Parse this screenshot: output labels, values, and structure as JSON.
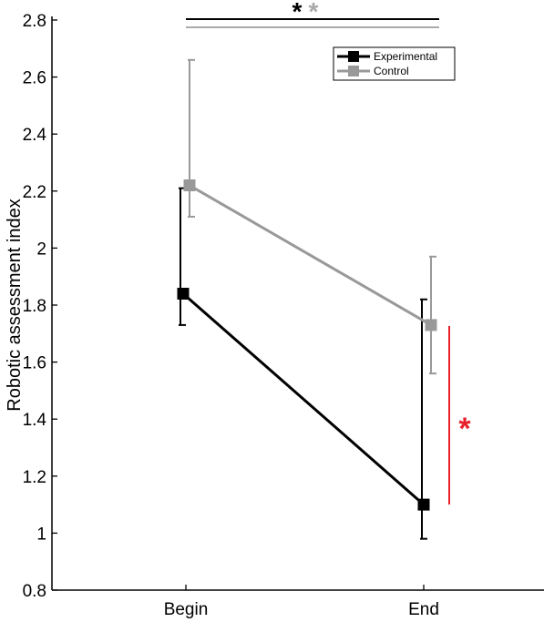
{
  "chart_data": {
    "type": "line",
    "categories": [
      "Begin",
      "End"
    ],
    "ylabel": "Robotic assessment index",
    "xlabel": "",
    "ylim": [
      0.8,
      2.8
    ],
    "yticks": [
      "0.8",
      "1",
      "1.2",
      "1.4",
      "1.6",
      "1.8",
      "2",
      "2.2",
      "2.4",
      "2.6",
      "2.8"
    ],
    "grid": false,
    "legend_position": "top-right",
    "series": [
      {
        "name": "Experimental",
        "color": "#000000",
        "marker": "square",
        "values": [
          1.84,
          1.1
        ],
        "error_low": [
          1.73,
          0.98
        ],
        "error_high": [
          2.21,
          1.82
        ]
      },
      {
        "name": "Control",
        "color": "#999999",
        "marker": "square",
        "values": [
          2.22,
          1.73
        ],
        "error_low": [
          2.11,
          1.56
        ],
        "error_high": [
          2.66,
          1.97
        ]
      }
    ],
    "annotations": [
      {
        "text": "*",
        "color": "#000000",
        "meaning": "significance between Begin and End (Experimental)"
      },
      {
        "text": "*",
        "color": "#aaaaaa",
        "meaning": "significance between Begin and End (Control)"
      },
      {
        "text": "*",
        "color": "#e8202a",
        "meaning": "significance between groups at End"
      }
    ]
  }
}
